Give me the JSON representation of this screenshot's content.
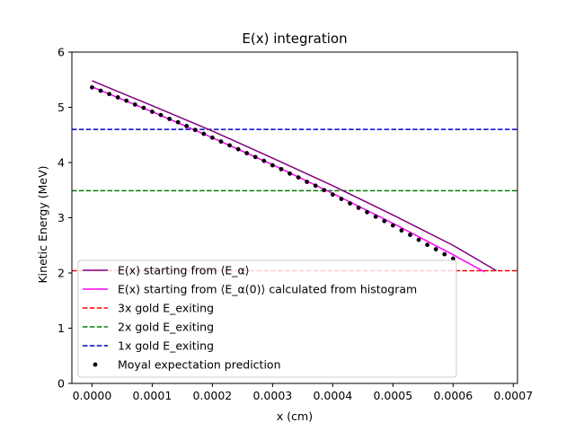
{
  "chart_data": {
    "type": "line",
    "title": "E(x) integration",
    "xlabel": "x (cm)",
    "ylabel": "Kinetic Energy (MeV)",
    "xlim": [
      -3.35e-05,
      0.000707
    ],
    "ylim": [
      0,
      6
    ],
    "xticks": [
      0.0,
      0.0001,
      0.0002,
      0.0003,
      0.0004,
      0.0005,
      0.0006,
      0.0007
    ],
    "xtick_labels": [
      "0.0000",
      "0.0001",
      "0.0002",
      "0.0003",
      "0.0004",
      "0.0005",
      "0.0006",
      "0.0007"
    ],
    "yticks": [
      0,
      1,
      2,
      3,
      4,
      5,
      6
    ],
    "ytick_labels": [
      "0",
      "1",
      "2",
      "3",
      "4",
      "5",
      "6"
    ],
    "grid": false,
    "legend_position": "lower-left",
    "series": [
      {
        "name": "E(x) starting from ⟨E_α⟩",
        "kind": "line",
        "color": "#800080",
        "x": [
          0.0,
          0.0001,
          0.0002,
          0.0003,
          0.0004,
          0.0005,
          0.0006,
          0.000672
        ],
        "y": [
          5.48,
          5.03,
          4.57,
          4.08,
          3.58,
          3.05,
          2.5,
          2.04
        ]
      },
      {
        "name": "E(x) starting from ⟨E_α(0)⟩ calculated from histogram",
        "kind": "line",
        "color": "#ff00ff",
        "x": [
          0.0,
          0.0001,
          0.0002,
          0.0003,
          0.0004,
          0.0005,
          0.0006,
          0.000652
        ],
        "y": [
          5.37,
          4.92,
          4.45,
          3.96,
          3.44,
          2.9,
          2.33,
          2.02
        ]
      },
      {
        "name": "3x gold E_exiting",
        "kind": "hline",
        "color": "#ff0000",
        "y": 2.04
      },
      {
        "name": "2x gold E_exiting",
        "kind": "hline",
        "color": "#008000",
        "y": 3.49
      },
      {
        "name": "1x gold E_exiting",
        "kind": "hline",
        "color": "#0000cc",
        "y": 4.6
      },
      {
        "name": "Moyal expectation prediction",
        "kind": "scatter",
        "color": "#000000",
        "x": [
          0.0,
          1.43e-05,
          2.86e-05,
          4.29e-05,
          5.71e-05,
          7.14e-05,
          8.57e-05,
          0.0001,
          0.0001143,
          0.0001286,
          0.0001429,
          0.0001571,
          0.0001714,
          0.0001857,
          0.0002,
          0.0002143,
          0.0002286,
          0.0002429,
          0.0002571,
          0.0002714,
          0.0002857,
          0.0003,
          0.0003143,
          0.0003286,
          0.0003429,
          0.0003571,
          0.0003714,
          0.0003857,
          0.0004,
          0.0004143,
          0.0004286,
          0.0004429,
          0.0004571,
          0.0004714,
          0.0004857,
          0.0005,
          0.0005143,
          0.0005286,
          0.0005429,
          0.0005571,
          0.0005714,
          0.0005857,
          0.0006
        ],
        "y": [
          5.36,
          5.3,
          5.24,
          5.18,
          5.12,
          5.05,
          4.99,
          4.92,
          4.86,
          4.79,
          4.73,
          4.66,
          4.59,
          4.52,
          4.45,
          4.38,
          4.31,
          4.24,
          4.17,
          4.1,
          4.03,
          3.95,
          3.88,
          3.8,
          3.73,
          3.65,
          3.58,
          3.5,
          3.42,
          3.34,
          3.26,
          3.18,
          3.1,
          3.02,
          2.94,
          2.86,
          2.77,
          2.69,
          2.6,
          2.51,
          2.43,
          2.34,
          2.26
        ]
      }
    ]
  }
}
